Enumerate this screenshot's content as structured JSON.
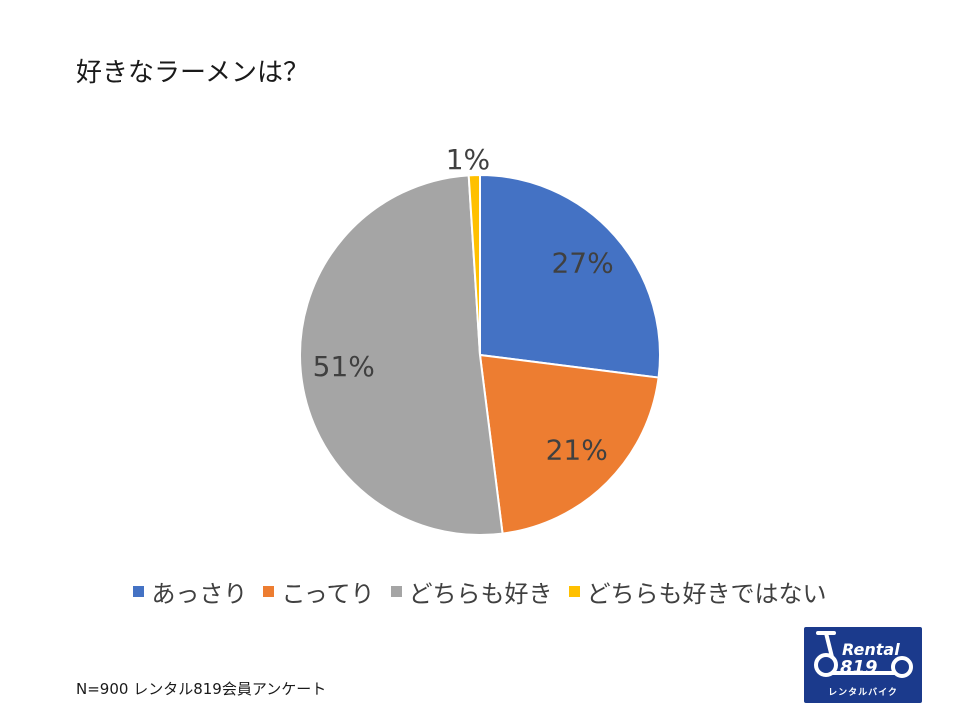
{
  "chart_data": {
    "type": "pie",
    "title": "好きなラーメンは？",
    "categories": [
      "あっさり",
      "こってり",
      "どちらも好き",
      "どちらも好きではない"
    ],
    "values": [
      27,
      21,
      51,
      1
    ],
    "labels": [
      "27%",
      "21%",
      "51%",
      "1%"
    ],
    "colors": [
      "#4472c4",
      "#ed7d31",
      "#a5a5a5",
      "#ffc000"
    ],
    "legend_position": "bottom"
  },
  "footnote": "N=900 レンタル819会員アンケート",
  "logo": {
    "line1": "Rental",
    "line2": "819",
    "caption": "レンタルバイク"
  }
}
